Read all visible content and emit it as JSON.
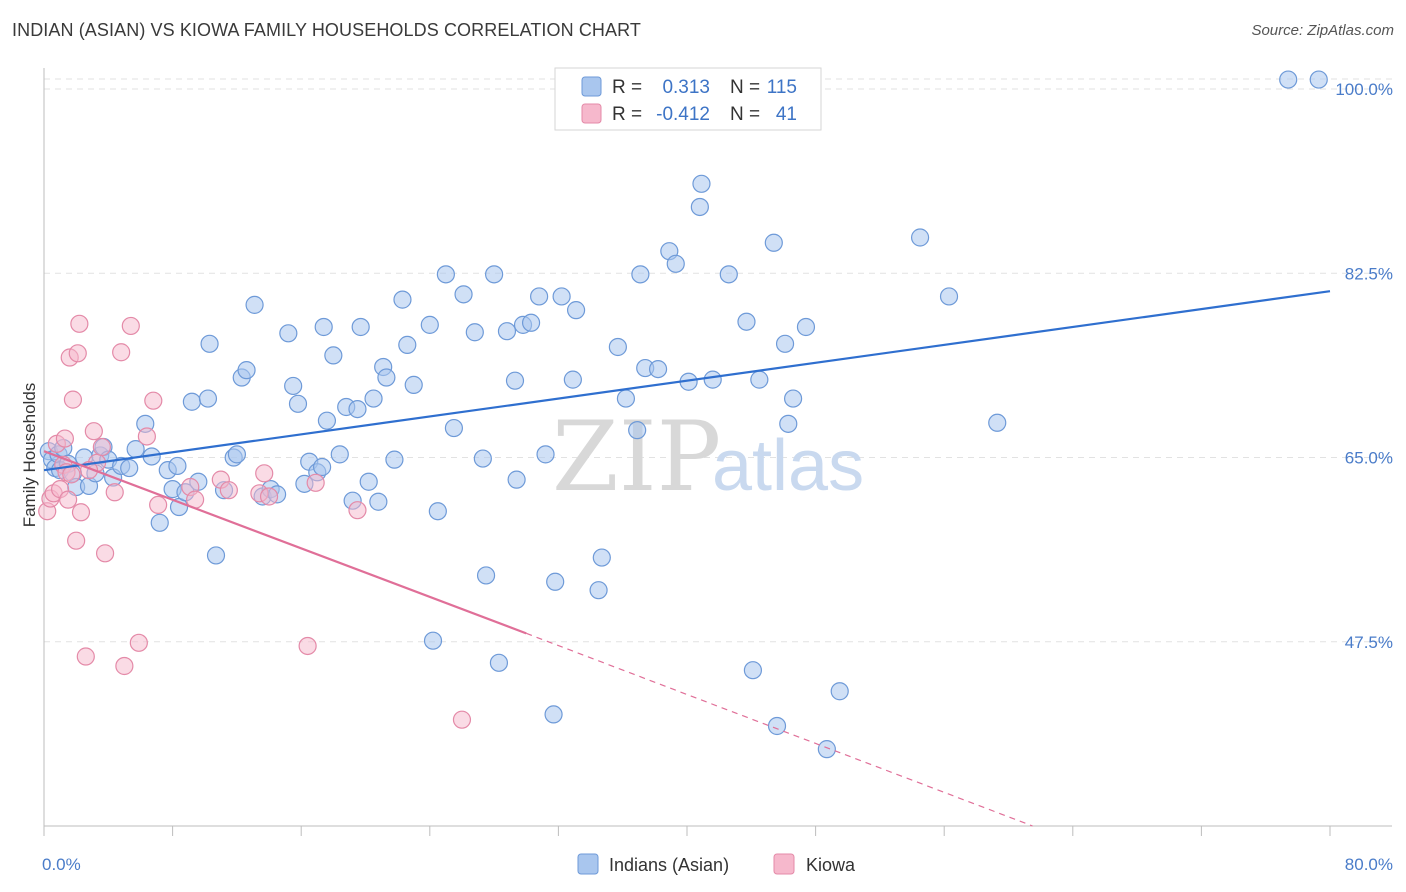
{
  "header": {
    "title": "INDIAN (ASIAN) VS KIOWA FAMILY HOUSEHOLDS CORRELATION CHART",
    "source": "Source: ZipAtlas.com"
  },
  "watermark": {
    "zip": "ZIP",
    "atlas": "atlas"
  },
  "legend_top": {
    "rows": [
      {
        "r_label": "R =",
        "r_value": "0.313",
        "n_label": "N =",
        "n_value": "115",
        "color": "#a9c6ee"
      },
      {
        "r_label": "R =",
        "r_value": "-0.412",
        "n_label": "N =",
        "n_value": "41",
        "color": "#f6b8cc"
      }
    ]
  },
  "legend_bottom": {
    "items": [
      {
        "label": "Indians (Asian)",
        "color": "#a9c6ee"
      },
      {
        "label": "Kiowa",
        "color": "#f6b8cc"
      }
    ]
  },
  "chart_data": {
    "type": "scatter",
    "xlabel": "",
    "ylabel": "Family Households",
    "xlim": [
      0,
      80
    ],
    "ylim": [
      30,
      102
    ],
    "x_tick_labels": [
      "0.0%",
      "80.0%"
    ],
    "y_tick_labels": [
      "47.5%",
      "65.0%",
      "82.5%",
      "100.0%"
    ],
    "y_ticks": [
      47.5,
      65.0,
      82.5,
      100.0
    ],
    "x_ticks": [
      0,
      8,
      16,
      24,
      32,
      40,
      48,
      56,
      64,
      72,
      80
    ],
    "colors": {
      "blue_fill": "#a9c6ee",
      "blue_stroke": "#6e9ad8",
      "blue_line": "#2f6fcf",
      "pink_fill": "#f6b8cc",
      "pink_stroke": "#e48aa8",
      "pink_line": "#e06f98"
    },
    "series": [
      {
        "name": "Indians (Asian)",
        "trend": {
          "x0": 0,
          "y0": 63.8,
          "x1": 80,
          "y1": 80.8
        },
        "points": [
          [
            0.3,
            65.6
          ],
          [
            0.5,
            64.8
          ],
          [
            0.7,
            64.0
          ],
          [
            0.9,
            65.3
          ],
          [
            1.0,
            63.8
          ],
          [
            1.2,
            65.9
          ],
          [
            1.5,
            64.4
          ],
          [
            1.8,
            63.5
          ],
          [
            2.0,
            62.2
          ],
          [
            2.5,
            65.0
          ],
          [
            2.8,
            62.3
          ],
          [
            3.2,
            63.5
          ],
          [
            3.5,
            65.2
          ],
          [
            3.7,
            66.0
          ],
          [
            4.0,
            64.8
          ],
          [
            4.3,
            63.1
          ],
          [
            4.8,
            64.2
          ],
          [
            5.3,
            64.0
          ],
          [
            5.7,
            65.8
          ],
          [
            6.3,
            68.2
          ],
          [
            6.7,
            65.1
          ],
          [
            7.2,
            58.8
          ],
          [
            7.7,
            63.8
          ],
          [
            8.0,
            62.0
          ],
          [
            8.4,
            60.3
          ],
          [
            8.8,
            61.7
          ],
          [
            9.2,
            70.3
          ],
          [
            9.6,
            62.7
          ],
          [
            10.2,
            70.6
          ],
          [
            10.3,
            75.8
          ],
          [
            10.7,
            55.7
          ],
          [
            11.2,
            61.9
          ],
          [
            11.8,
            65.0
          ],
          [
            12.0,
            65.3
          ],
          [
            12.3,
            72.6
          ],
          [
            12.6,
            73.3
          ],
          [
            13.1,
            79.5
          ],
          [
            13.6,
            61.3
          ],
          [
            14.1,
            62.0
          ],
          [
            14.5,
            61.5
          ],
          [
            15.2,
            76.8
          ],
          [
            15.5,
            71.8
          ],
          [
            15.8,
            70.1
          ],
          [
            16.2,
            62.5
          ],
          [
            16.5,
            64.6
          ],
          [
            17.0,
            63.6
          ],
          [
            17.4,
            77.4
          ],
          [
            17.6,
            68.5
          ],
          [
            18.0,
            74.7
          ],
          [
            18.4,
            65.3
          ],
          [
            18.8,
            69.8
          ],
          [
            19.2,
            60.9
          ],
          [
            19.5,
            69.6
          ],
          [
            19.7,
            77.4
          ],
          [
            20.2,
            62.7
          ],
          [
            20.5,
            70.6
          ],
          [
            20.8,
            60.8
          ],
          [
            21.1,
            73.6
          ],
          [
            21.3,
            72.6
          ],
          [
            21.8,
            64.8
          ],
          [
            22.3,
            80.0
          ],
          [
            22.6,
            75.7
          ],
          [
            23.0,
            71.9
          ],
          [
            24.0,
            77.6
          ],
          [
            24.5,
            59.9
          ],
          [
            24.2,
            47.6
          ],
          [
            25.0,
            82.4
          ],
          [
            25.5,
            67.8
          ],
          [
            26.1,
            80.5
          ],
          [
            26.8,
            76.9
          ],
          [
            27.3,
            64.9
          ],
          [
            27.5,
            53.8
          ],
          [
            28.0,
            82.4
          ],
          [
            28.3,
            45.5
          ],
          [
            28.8,
            77.0
          ],
          [
            29.3,
            72.3
          ],
          [
            29.8,
            77.6
          ],
          [
            30.3,
            77.8
          ],
          [
            30.8,
            80.3
          ],
          [
            31.2,
            65.3
          ],
          [
            31.8,
            53.2
          ],
          [
            31.7,
            40.6
          ],
          [
            32.2,
            80.3
          ],
          [
            32.9,
            72.4
          ],
          [
            33.1,
            79.0
          ],
          [
            34.5,
            52.4
          ],
          [
            34.7,
            55.5
          ],
          [
            35.7,
            75.5
          ],
          [
            36.2,
            70.6
          ],
          [
            36.9,
            67.6
          ],
          [
            37.1,
            82.4
          ],
          [
            37.4,
            73.5
          ],
          [
            38.2,
            73.4
          ],
          [
            38.9,
            84.6
          ],
          [
            39.3,
            83.4
          ],
          [
            40.1,
            72.2
          ],
          [
            40.8,
            88.8
          ],
          [
            40.9,
            91.0
          ],
          [
            41.6,
            72.4
          ],
          [
            42.6,
            82.4
          ],
          [
            43.7,
            77.9
          ],
          [
            44.1,
            44.8
          ],
          [
            44.5,
            72.4
          ],
          [
            45.4,
            85.4
          ],
          [
            45.6,
            39.5
          ],
          [
            46.1,
            75.8
          ],
          [
            46.3,
            68.2
          ],
          [
            46.6,
            70.6
          ],
          [
            47.4,
            77.4
          ],
          [
            48.7,
            37.3
          ],
          [
            49.5,
            42.8
          ],
          [
            54.5,
            85.9
          ],
          [
            56.3,
            80.3
          ],
          [
            59.3,
            68.3
          ],
          [
            77.4,
            100.9
          ],
          [
            79.3,
            100.9
          ],
          [
            8.3,
            64.2
          ],
          [
            17.3,
            64.1
          ],
          [
            29.4,
            62.9
          ]
        ]
      },
      {
        "name": "Kiowa",
        "trend": {
          "x0": 0,
          "y0": 65.6,
          "x1": 30,
          "y1": 48.3,
          "dash_x1": 61.5,
          "dash_y1": 30
        },
        "points": [
          [
            0.2,
            59.9
          ],
          [
            0.4,
            61.1
          ],
          [
            0.6,
            61.6
          ],
          [
            0.8,
            66.3
          ],
          [
            1.0,
            62.0
          ],
          [
            1.2,
            64.3
          ],
          [
            1.4,
            63.6
          ],
          [
            1.5,
            61.0
          ],
          [
            1.6,
            74.5
          ],
          [
            1.7,
            63.4
          ],
          [
            1.8,
            70.5
          ],
          [
            2.0,
            57.1
          ],
          [
            2.1,
            74.9
          ],
          [
            2.2,
            77.7
          ],
          [
            2.3,
            59.8
          ],
          [
            2.6,
            46.1
          ],
          [
            3.1,
            67.5
          ],
          [
            3.3,
            64.5
          ],
          [
            3.6,
            66.0
          ],
          [
            3.8,
            55.9
          ],
          [
            4.4,
            61.7
          ],
          [
            4.8,
            75.0
          ],
          [
            5.0,
            45.2
          ],
          [
            5.4,
            77.5
          ],
          [
            5.9,
            47.4
          ],
          [
            6.4,
            67.0
          ],
          [
            6.8,
            70.4
          ],
          [
            7.1,
            60.5
          ],
          [
            9.1,
            62.2
          ],
          [
            9.4,
            61.0
          ],
          [
            11.0,
            62.9
          ],
          [
            11.5,
            61.9
          ],
          [
            13.4,
            61.6
          ],
          [
            13.7,
            63.5
          ],
          [
            14.0,
            61.3
          ],
          [
            16.4,
            47.1
          ],
          [
            16.9,
            62.6
          ],
          [
            19.5,
            60.0
          ],
          [
            26.0,
            40.1
          ],
          [
            2.8,
            63.8
          ],
          [
            1.3,
            66.8
          ]
        ]
      }
    ]
  }
}
